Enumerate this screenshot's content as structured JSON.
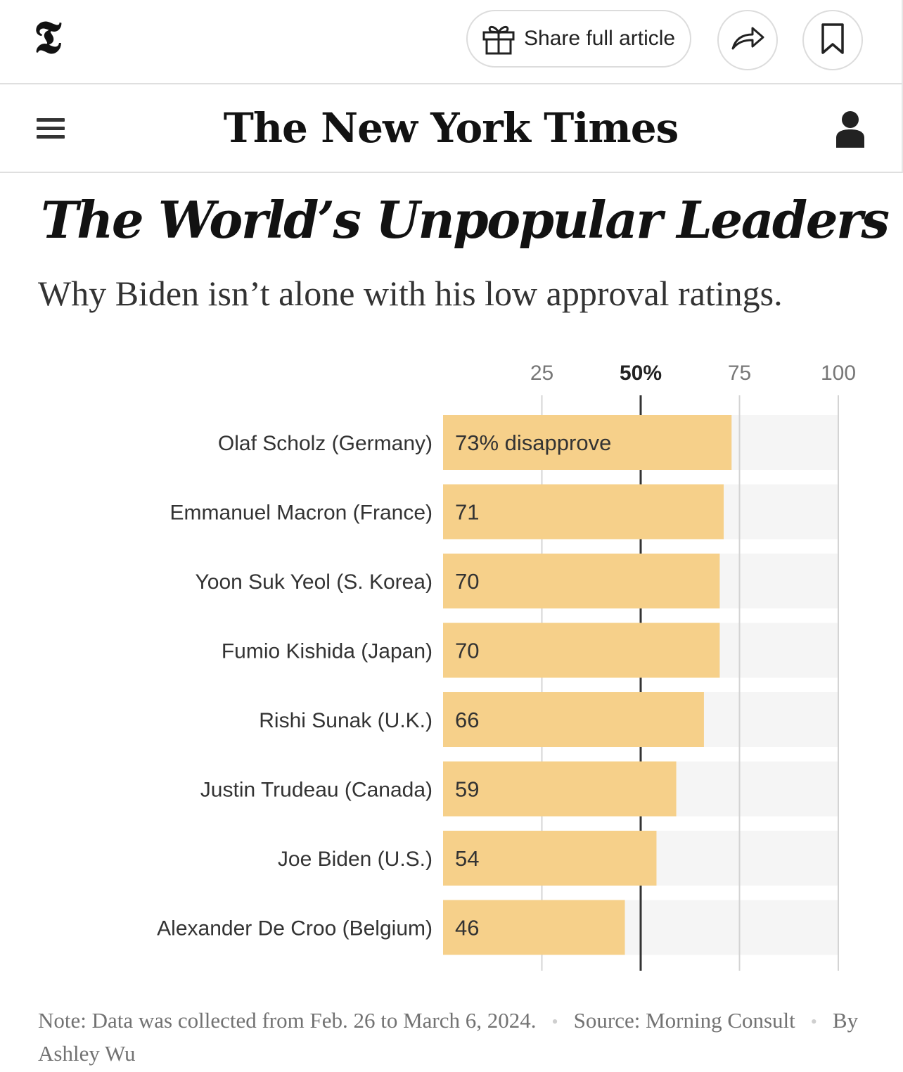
{
  "toolbar": {
    "logo_glyph": "𝕿",
    "share_label": "Share full article",
    "icons": [
      "gift-icon",
      "share-arrow-icon",
      "bookmark-icon"
    ]
  },
  "masthead": {
    "publication": "The New York Times",
    "icons": [
      "menu-icon",
      "user-icon"
    ]
  },
  "article": {
    "headline": "The World’s Unpopular Leaders",
    "subheadline": "Why Biden isn’t alone with his low approval ratings."
  },
  "chart_data": {
    "type": "bar",
    "orientation": "horizontal",
    "categories": [
      "Olaf Scholz (Germany)",
      "Emmanuel Macron (France)",
      "Yoon Suk Yeol (S. Korea)",
      "Fumio Kishida (Japan)",
      "Rishi Sunak (U.K.)",
      "Justin Trudeau (Canada)",
      "Joe Biden (U.S.)",
      "Alexander De Croo (Belgium)"
    ],
    "values": [
      73,
      71,
      70,
      70,
      66,
      59,
      54,
      46
    ],
    "value_labels": [
      "73% disapprove",
      "71",
      "70",
      "70",
      "66",
      "59",
      "54",
      "46"
    ],
    "xlim": [
      0,
      100
    ],
    "xticks": [
      {
        "value": 25,
        "label": "25",
        "emphasis": false
      },
      {
        "value": 50,
        "label": "50%",
        "emphasis": true
      },
      {
        "value": 75,
        "label": "75",
        "emphasis": false
      },
      {
        "value": 100,
        "label": "100",
        "emphasis": false
      }
    ],
    "grid": true,
    "colors": {
      "bar": "#f6d08a",
      "track": "#f5f5f5",
      "grid": "#d4d4d4",
      "grid_emphasis": "#333333"
    }
  },
  "footer": {
    "note": "Note: Data was collected from Feb. 26 to March 6, 2024.",
    "source": "Source: Morning Consult",
    "byline": "By Ashley Wu",
    "separator": "•"
  }
}
